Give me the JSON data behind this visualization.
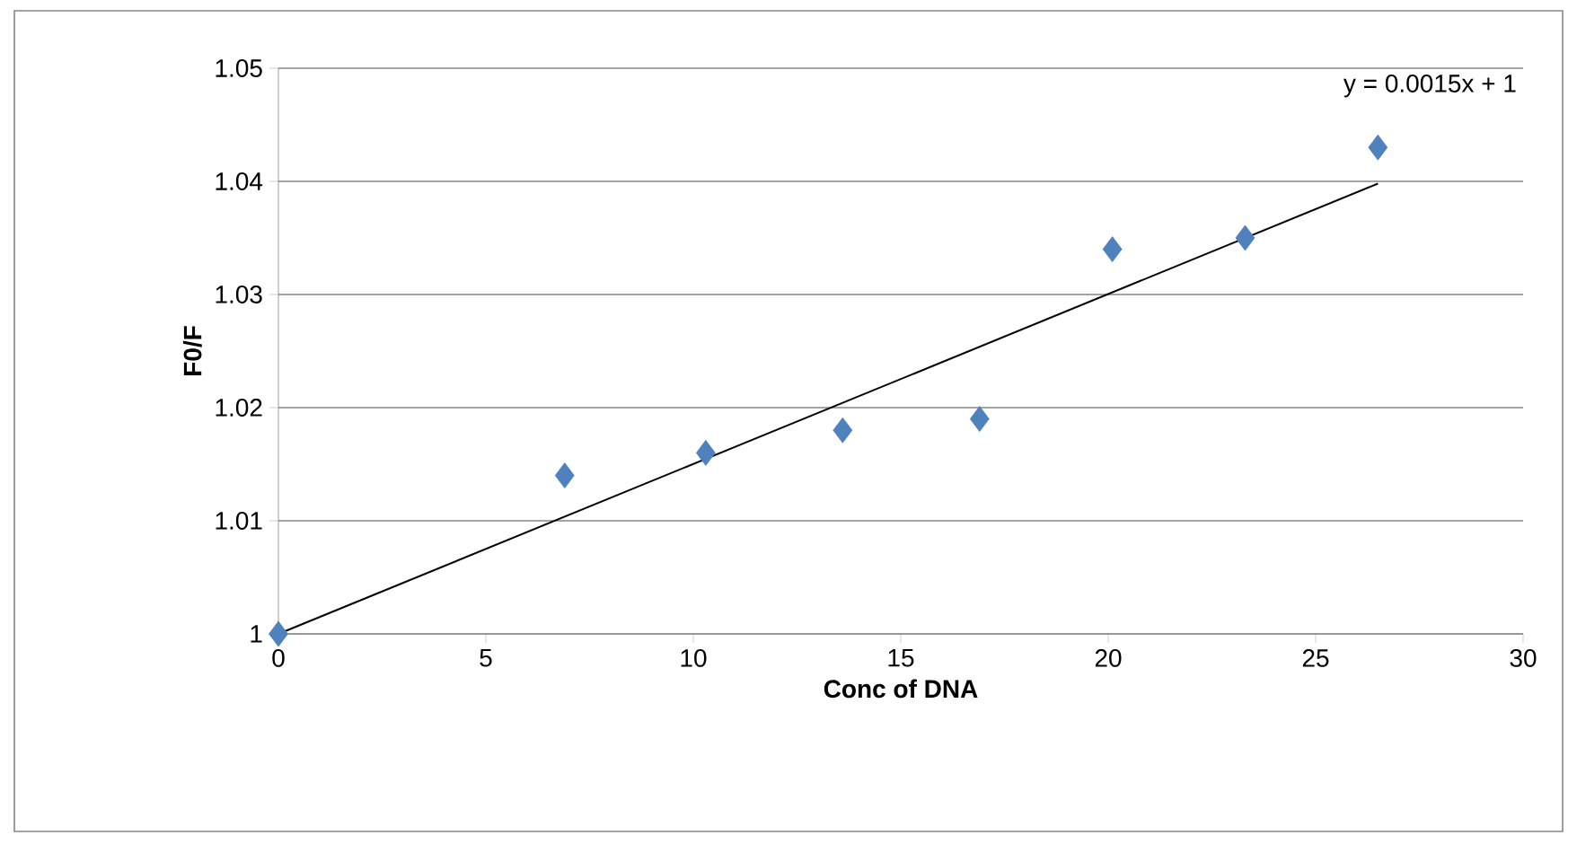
{
  "chart_data": {
    "type": "scatter",
    "xlabel": "Conc of DNA",
    "ylabel": "F0/F",
    "xlim": [
      0,
      30
    ],
    "xticks": [
      0,
      5,
      10,
      15,
      20,
      25,
      30
    ],
    "ylim": [
      1,
      1.05
    ],
    "yticks": [
      {
        "value": 1,
        "label": "1"
      },
      1.01,
      1.02,
      1.03,
      1.04,
      1.05
    ],
    "grid": "y",
    "marker": "diamond",
    "annotations": [
      "y = 0.0015x + 1"
    ],
    "series": [
      {
        "type": "scatter",
        "color": "#4f81bd",
        "x": [
          0,
          6.9,
          10.3,
          13.6,
          16.9,
          20.1,
          23.3,
          26.5
        ],
        "values": [
          1.0,
          1.014,
          1.016,
          1.018,
          1.019,
          1.034,
          1.035,
          1.043
        ]
      },
      {
        "type": "line",
        "color": "#000000",
        "marker": "none",
        "line_style": "solid",
        "x": [
          0,
          26.5
        ],
        "values": [
          1.0,
          1.0398
        ]
      }
    ]
  }
}
